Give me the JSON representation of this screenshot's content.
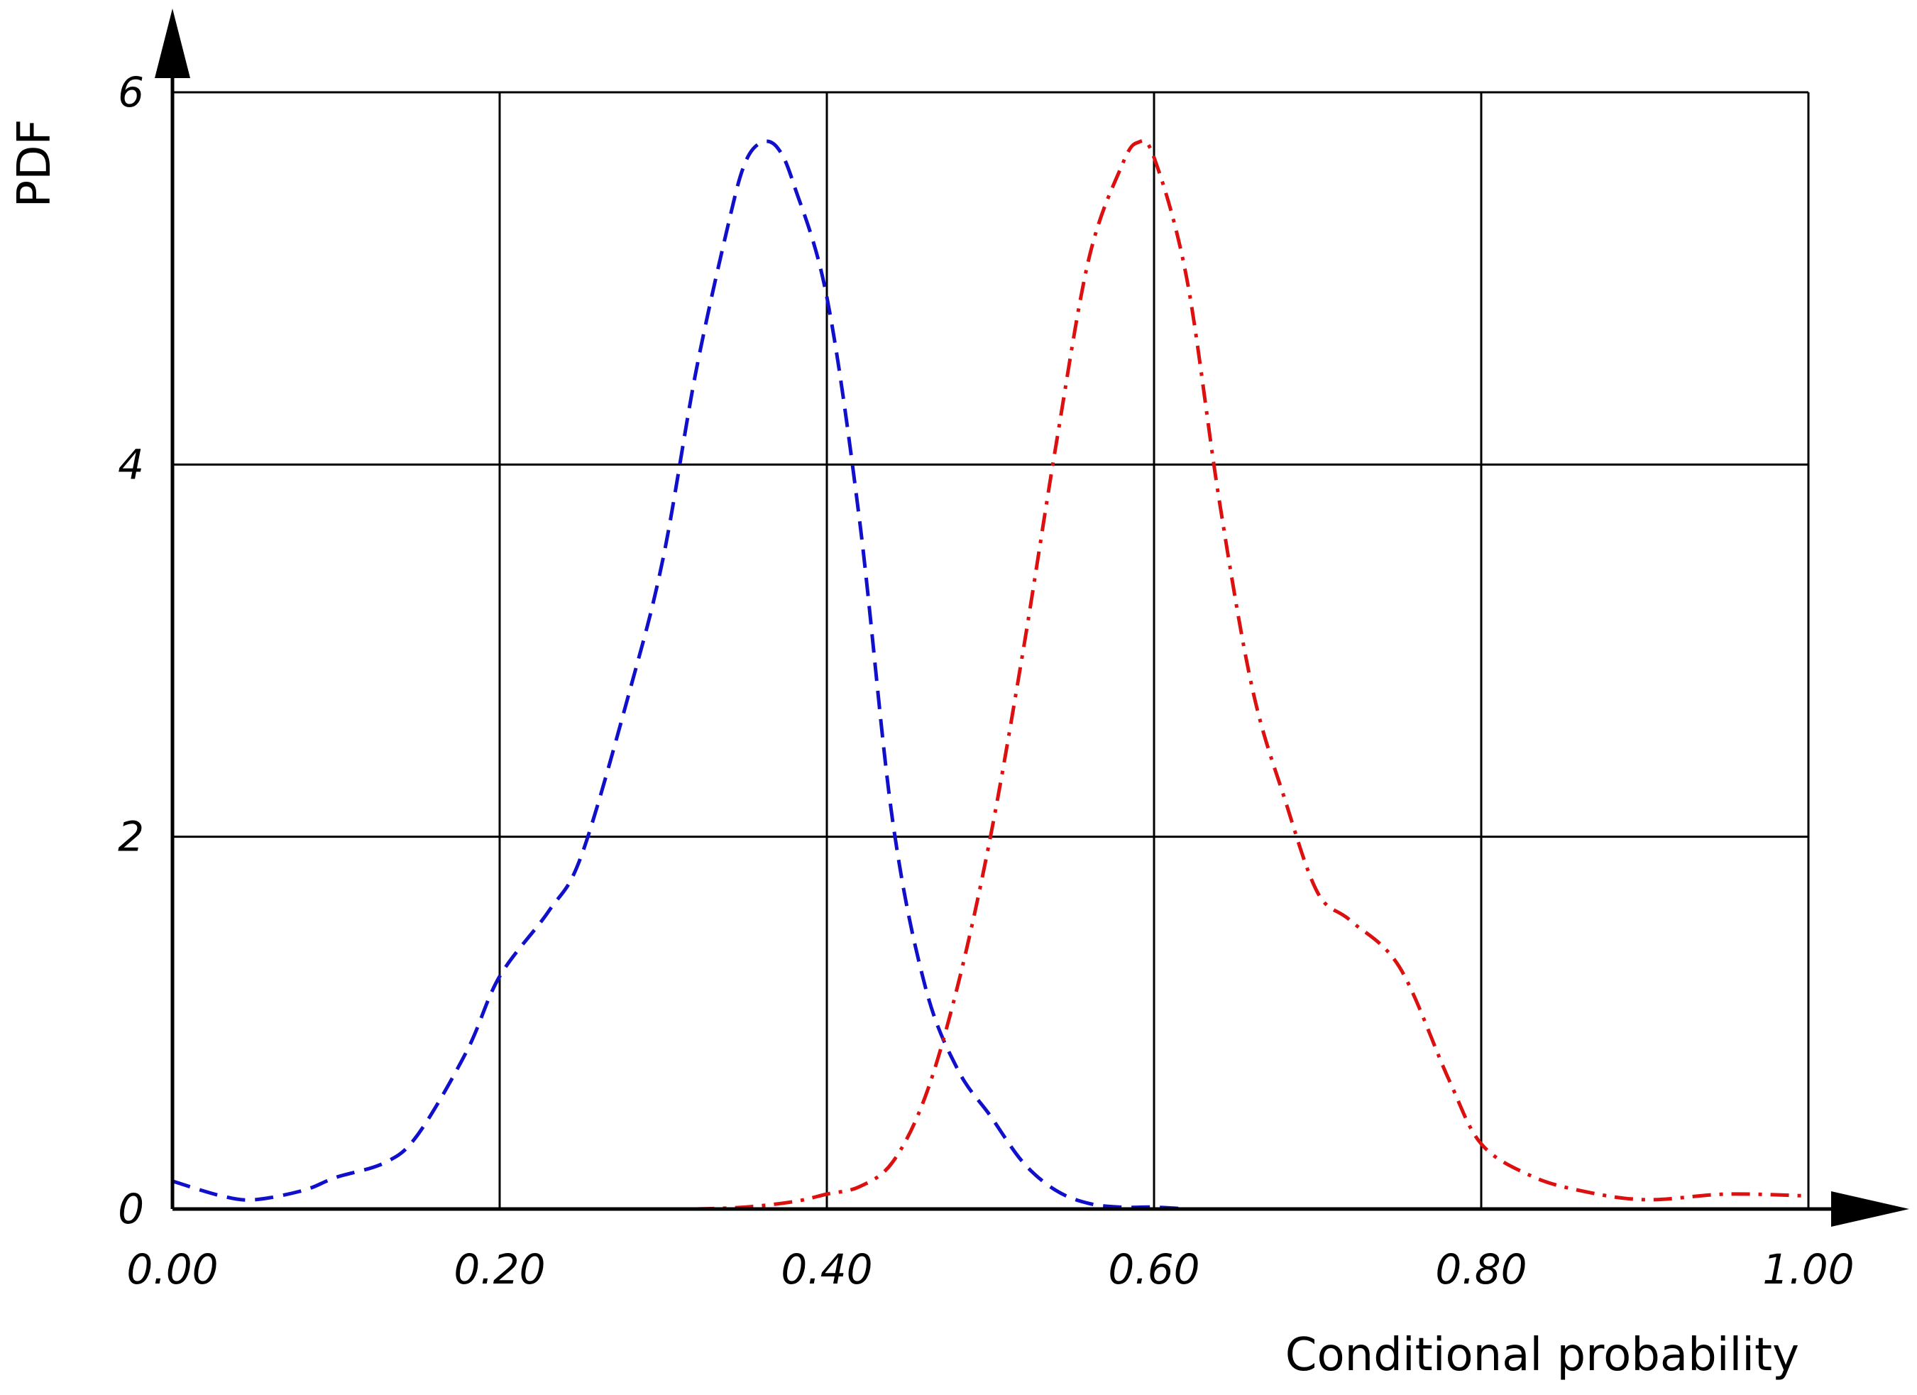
{
  "chart_data": {
    "type": "line",
    "title": "",
    "xlabel": "Conditional probability",
    "ylabel": "PDF",
    "xlim": [
      0,
      1
    ],
    "ylim": [
      0,
      6
    ],
    "grid": true,
    "legend": "none",
    "x_ticks": [
      0,
      0.2,
      0.4,
      0.6,
      0.8,
      1.0
    ],
    "x_tick_labels": [
      "0.00",
      "0.20",
      "0.40",
      "0.60",
      "0.80",
      "1.00"
    ],
    "y_ticks": [
      0,
      2,
      4,
      6
    ],
    "y_tick_labels": [
      "0",
      "2",
      "4",
      "6"
    ],
    "series": [
      {
        "color": "#1010cc",
        "style": "dashed",
        "x": [
          0.0,
          0.03,
          0.05,
          0.08,
          0.1,
          0.13,
          0.15,
          0.18,
          0.2,
          0.23,
          0.25,
          0.28,
          0.3,
          0.32,
          0.34,
          0.35,
          0.36,
          0.37,
          0.38,
          0.4,
          0.42,
          0.44,
          0.46,
          0.48,
          0.5,
          0.52,
          0.54,
          0.56,
          0.58,
          0.6,
          0.62
        ],
        "y": [
          0.15,
          0.07,
          0.05,
          0.1,
          0.17,
          0.25,
          0.4,
          0.85,
          1.25,
          1.6,
          1.9,
          2.8,
          3.5,
          4.5,
          5.3,
          5.62,
          5.73,
          5.7,
          5.5,
          4.9,
          3.7,
          2.1,
          1.2,
          0.75,
          0.5,
          0.25,
          0.1,
          0.03,
          0.01,
          0.01,
          0.0
        ]
      },
      {
        "color": "#dd1010",
        "style": "dashdot",
        "x": [
          0.32,
          0.35,
          0.38,
          0.4,
          0.42,
          0.44,
          0.46,
          0.48,
          0.5,
          0.52,
          0.54,
          0.56,
          0.58,
          0.59,
          0.6,
          0.62,
          0.64,
          0.66,
          0.68,
          0.7,
          0.72,
          0.75,
          0.78,
          0.8,
          0.83,
          0.86,
          0.9,
          0.95,
          1.0
        ],
        "y": [
          0.0,
          0.01,
          0.04,
          0.08,
          0.12,
          0.25,
          0.6,
          1.2,
          2.0,
          3.0,
          4.1,
          5.1,
          5.6,
          5.73,
          5.65,
          5.0,
          3.8,
          2.8,
          2.2,
          1.7,
          1.55,
          1.3,
          0.7,
          0.35,
          0.18,
          0.1,
          0.05,
          0.08,
          0.07
        ]
      }
    ]
  }
}
